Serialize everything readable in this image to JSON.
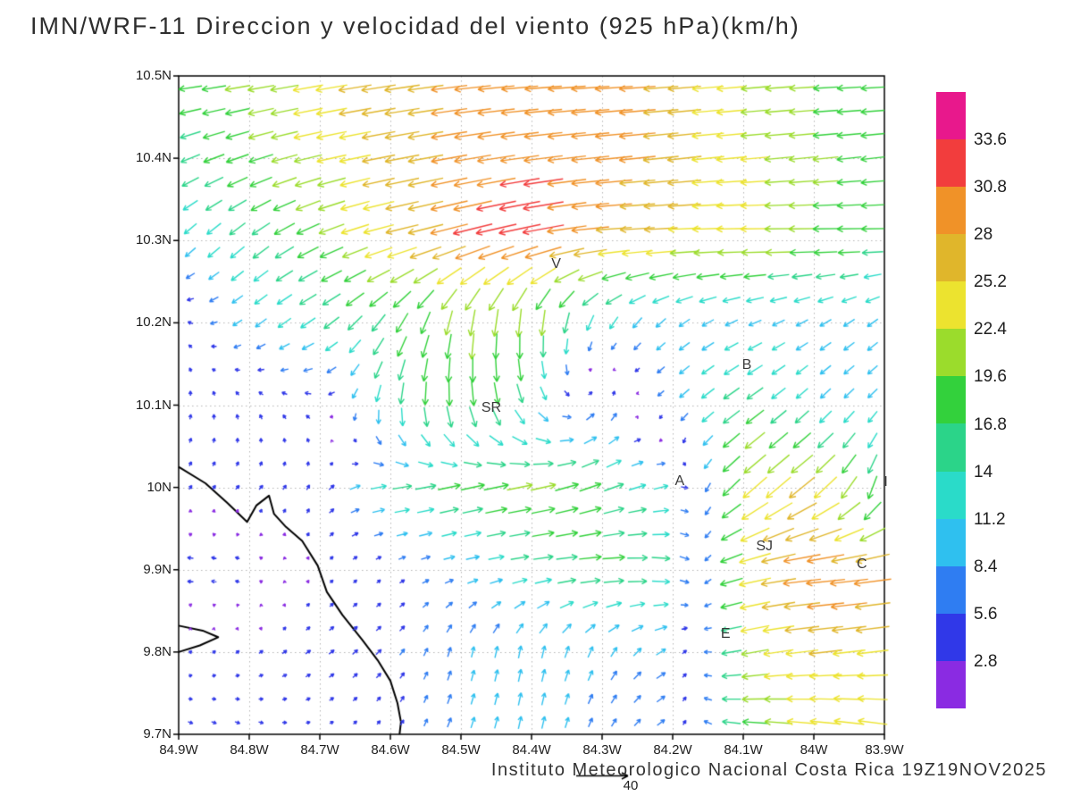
{
  "chart_data": {
    "type": "vector_field",
    "title": "IMN/WRF-11 Direccion y velocidad del viento (925 hPa)(km/h)",
    "footer": "Instituto Meteorologico Nacional Costa Rica 19Z19NOV2025",
    "reference_vector": {
      "label": "40",
      "value_kmh": 40
    },
    "domain": {
      "lon_west": 84.9,
      "lon_east": 83.9,
      "lat_south": 9.7,
      "lat_north": 10.5
    },
    "axes": {
      "x_ticks": [
        {
          "label": "84.9W",
          "lon": 84.9
        },
        {
          "label": "84.8W",
          "lon": 84.8
        },
        {
          "label": "84.7W",
          "lon": 84.7
        },
        {
          "label": "84.6W",
          "lon": 84.6
        },
        {
          "label": "84.5W",
          "lon": 84.5
        },
        {
          "label": "84.4W",
          "lon": 84.4
        },
        {
          "label": "84.3W",
          "lon": 84.3
        },
        {
          "label": "84.2W",
          "lon": 84.2
        },
        {
          "label": "84.1W",
          "lon": 84.1
        },
        {
          "label": "84W",
          "lon": 84.0
        },
        {
          "label": "83.9W",
          "lon": 83.9
        }
      ],
      "y_ticks": [
        {
          "label": "10.5N",
          "lat": 10.5
        },
        {
          "label": "10.4N",
          "lat": 10.4
        },
        {
          "label": "10.3N",
          "lat": 10.3
        },
        {
          "label": "10.2N",
          "lat": 10.2
        },
        {
          "label": "10.1N",
          "lat": 10.1
        },
        {
          "label": "10N",
          "lat": 10.0
        },
        {
          "label": "9.9N",
          "lat": 9.9
        },
        {
          "label": "9.8N",
          "lat": 9.8
        },
        {
          "label": "9.7N",
          "lat": 9.7
        }
      ],
      "grid": "dotted"
    },
    "colorbar": {
      "levels": [
        2.8,
        5.6,
        8.4,
        11.2,
        14,
        16.8,
        19.6,
        22.4,
        25.2,
        28,
        30.8,
        33.6
      ],
      "labels": [
        "33.6",
        "30.8",
        "28",
        "25.2",
        "22.4",
        "19.6",
        "16.8",
        "14",
        "11.2",
        "8.4",
        "5.6",
        "2.8"
      ],
      "colors": [
        "#8a2be2",
        "#3038e8",
        "#2f7df2",
        "#2fc0ef",
        "#2adbc9",
        "#2bd489",
        "#33d13c",
        "#9bdc2c",
        "#ece32f",
        "#e0b62b",
        "#f09228",
        "#f23d3d",
        "#e8188c"
      ]
    },
    "stations": [
      {
        "label": "V",
        "lon": 84.365,
        "lat": 10.27
      },
      {
        "label": "B",
        "lon": 84.095,
        "lat": 10.147
      },
      {
        "label": "SR",
        "lon": 84.457,
        "lat": 10.095
      },
      {
        "label": "A",
        "lon": 84.19,
        "lat": 10.006
      },
      {
        "label": "I",
        "lon": 83.898,
        "lat": 10.005
      },
      {
        "label": "SJ",
        "lon": 84.07,
        "lat": 9.927
      },
      {
        "label": "C",
        "lon": 83.932,
        "lat": 9.905
      },
      {
        "label": "E",
        "lon": 84.125,
        "lat": 9.82
      }
    ],
    "coastlines": [
      [
        [
          84.9,
          10.025
        ],
        [
          84.862,
          10.005
        ],
        [
          84.832,
          9.982
        ],
        [
          84.803,
          9.958
        ],
        [
          84.79,
          9.978
        ],
        [
          84.772,
          9.99
        ],
        [
          84.765,
          9.968
        ],
        [
          84.748,
          9.952
        ],
        [
          84.725,
          9.935
        ],
        [
          84.703,
          9.905
        ],
        [
          84.69,
          9.873
        ],
        [
          84.668,
          9.845
        ],
        [
          84.64,
          9.815
        ],
        [
          84.618,
          9.79
        ],
        [
          84.6,
          9.765
        ],
        [
          84.59,
          9.738
        ],
        [
          84.585,
          9.715
        ],
        [
          84.587,
          9.7
        ]
      ],
      [
        [
          84.9,
          9.832
        ],
        [
          84.866,
          9.826
        ],
        [
          84.844,
          9.818
        ],
        [
          84.87,
          9.808
        ],
        [
          84.9,
          9.8
        ]
      ]
    ],
    "wind_grid": {
      "units": "km/h",
      "lons": [
        84.9,
        84.8,
        84.7,
        84.6,
        84.5,
        84.4,
        84.3,
        84.2,
        84.1,
        84.0,
        83.9
      ],
      "lats": [
        10.5,
        10.4,
        10.3,
        10.2,
        10.1,
        10.0,
        9.9,
        9.8,
        9.7
      ],
      "u": [
        [
          -18,
          -20,
          -24,
          -27,
          -28,
          -28,
          -30,
          -26,
          -22,
          -19,
          -18
        ],
        [
          -14,
          -18,
          -22,
          -26,
          -28,
          -30,
          -29,
          -27,
          -23,
          -20,
          -18
        ],
        [
          -8,
          -12,
          -18,
          -24,
          -30,
          -33,
          -28,
          -25,
          -23,
          -20,
          -17
        ],
        [
          -3,
          -8,
          -12,
          -10,
          -4,
          -2,
          -6,
          -8,
          -10,
          -9,
          -8
        ],
        [
          1,
          -2,
          -4,
          -2,
          2,
          6,
          4,
          -6,
          -14,
          -8,
          -7
        ],
        [
          2,
          3,
          2,
          14,
          18,
          20,
          16,
          10,
          -18,
          -20,
          -4
        ],
        [
          -6,
          -4,
          2,
          3,
          8,
          14,
          18,
          14,
          -24,
          -31,
          -29
        ],
        [
          2,
          3,
          4,
          4,
          2,
          2,
          4,
          8,
          -20,
          -26,
          -24
        ],
        [
          4,
          4,
          3,
          2,
          3,
          2,
          3,
          6,
          -18,
          -24,
          -22
        ]
      ],
      "v": [
        [
          -2,
          -3,
          -4,
          -4,
          -3,
          -2,
          -2,
          -2,
          -2,
          -1,
          -1
        ],
        [
          -6,
          -6,
          -5,
          -5,
          -5,
          -4,
          -3,
          -3,
          -2,
          -2,
          -2
        ],
        [
          -8,
          -10,
          -8,
          -6,
          -8,
          -7,
          -2,
          -1,
          0,
          0,
          0
        ],
        [
          3,
          -6,
          -8,
          -14,
          -20,
          -22,
          -10,
          -6,
          -4,
          -5,
          -6
        ],
        [
          4,
          4,
          2,
          -16,
          -20,
          -12,
          8,
          -6,
          -10,
          -8,
          -7
        ],
        [
          3,
          3,
          4,
          2,
          4,
          4,
          6,
          2,
          -16,
          -16,
          -18
        ],
        [
          0,
          1,
          2,
          2,
          2,
          2,
          1,
          -2,
          -6,
          -3,
          -4
        ],
        [
          2,
          2,
          3,
          4,
          8,
          10,
          8,
          4,
          -4,
          -3,
          -3
        ],
        [
          -2,
          -2,
          1,
          3,
          8,
          10,
          6,
          4,
          2,
          3,
          4
        ]
      ]
    }
  }
}
